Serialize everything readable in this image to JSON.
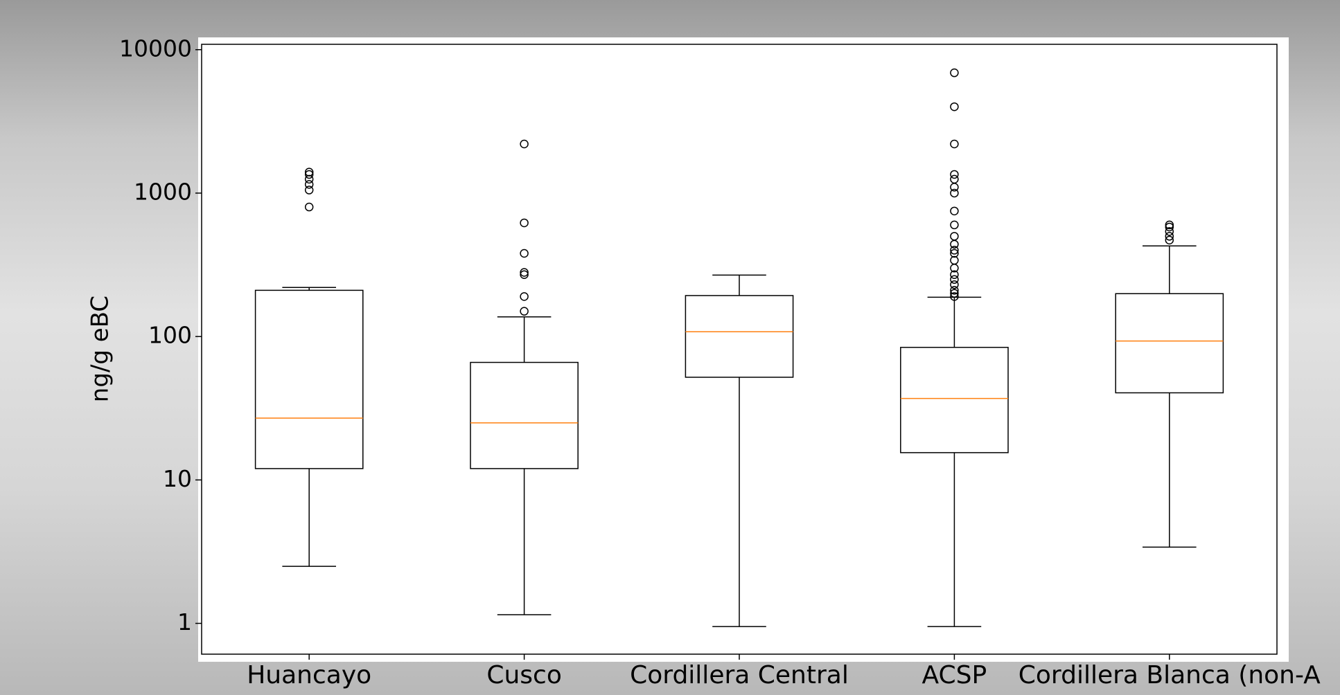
{
  "chart_data": {
    "type": "boxplot",
    "y_label": "ng/g eBC",
    "log_scale": true,
    "categories": [
      "Huancayo",
      "Cusco",
      "Cordillera Central",
      "ACSP",
      "Cordillera Blanca (non-A"
    ],
    "median_color": "#ff7f0e",
    "box_color": "#000000",
    "boxes": [
      {
        "whislo": 2.5,
        "q1": 12,
        "med": 27,
        "q3": 210,
        "whishi": 220,
        "fliers": [
          800,
          1050,
          1150,
          1250,
          1350,
          1400
        ]
      },
      {
        "whislo": 1.15,
        "q1": 12,
        "med": 25,
        "q3": 66,
        "whishi": 137,
        "fliers": [
          150,
          190,
          270,
          280,
          380,
          620,
          2200
        ]
      },
      {
        "whislo": 0.95,
        "q1": 52,
        "med": 108,
        "q3": 193,
        "whishi": 268,
        "fliers": []
      },
      {
        "whislo": 0.95,
        "q1": 15.5,
        "med": 37,
        "q3": 84,
        "whishi": 188,
        "fliers": [
          190,
          200,
          210,
          230,
          250,
          270,
          300,
          340,
          380,
          400,
          440,
          500,
          600,
          750,
          1000,
          1100,
          1250,
          1350,
          2200,
          4000,
          6900
        ]
      },
      {
        "whislo": 3.4,
        "q1": 40.5,
        "med": 93,
        "q3": 199,
        "whishi": 428,
        "fliers": [
          470,
          500,
          540,
          580,
          600
        ]
      }
    ],
    "ylim": [
      0.61,
      10900
    ],
    "yticks": [
      1,
      10,
      100,
      1000,
      10000
    ]
  }
}
